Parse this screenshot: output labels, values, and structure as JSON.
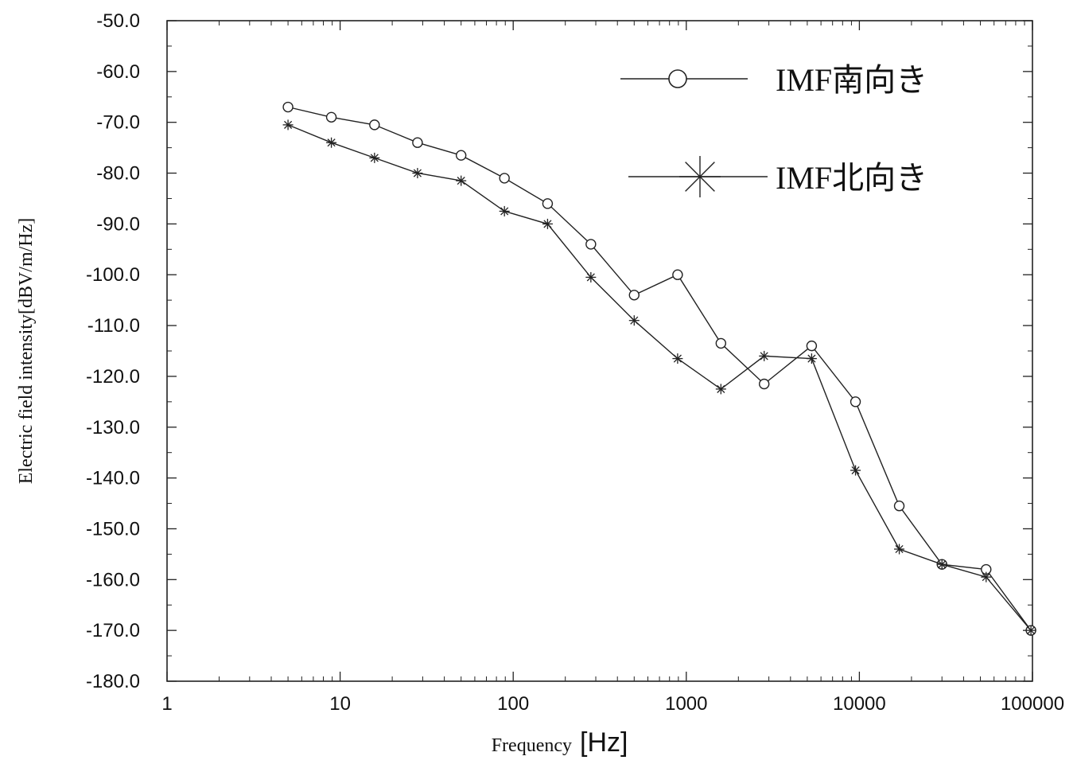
{
  "chart_data": {
    "type": "line",
    "xscale": "log",
    "xlim": [
      1,
      100000
    ],
    "ylim": [
      -180,
      -50
    ],
    "xlabel": "Frequency",
    "xlabel_unit": "[Hz]",
    "ylabel": "Electric field intensity[dBV/m/Hz]",
    "x_ticks": [
      "1",
      "10",
      "100",
      "1000",
      "10000",
      "100000"
    ],
    "y_ticks": [
      "-50.0",
      "-60.0",
      "-70.0",
      "-80.0",
      "-90.0",
      "-100.0",
      "-110.0",
      "-120.0",
      "-130.0",
      "-140.0",
      "-150.0",
      "-160.0",
      "-170.0",
      "-180.0"
    ],
    "legend_position": "top-right",
    "grid": false,
    "series": [
      {
        "name": "IMF南向き",
        "marker": "circle",
        "x": [
          5,
          8.9,
          15.8,
          28,
          50,
          89,
          158,
          281,
          500,
          891,
          1585,
          2818,
          5300,
          9500,
          17000,
          30000,
          54000,
          98000
        ],
        "y": [
          -67,
          -69,
          -70.5,
          -74,
          -76.5,
          -81,
          -86,
          -94,
          -104,
          -100,
          -113.5,
          -121.5,
          -114,
          -125,
          -145.5,
          -157,
          -158,
          -170
        ]
      },
      {
        "name": "IMF北向き",
        "marker": "asterisk",
        "x": [
          5,
          8.9,
          15.8,
          28,
          50,
          89,
          158,
          281,
          500,
          891,
          1585,
          2818,
          5300,
          9500,
          17000,
          30000,
          54000,
          98000
        ],
        "y": [
          -70.5,
          -74,
          -77,
          -80,
          -81.5,
          -87.5,
          -90,
          -100.5,
          -109,
          -116.5,
          -122.5,
          -116,
          -116.5,
          -138.5,
          -154,
          -157,
          -159.5,
          -170
        ]
      }
    ]
  }
}
